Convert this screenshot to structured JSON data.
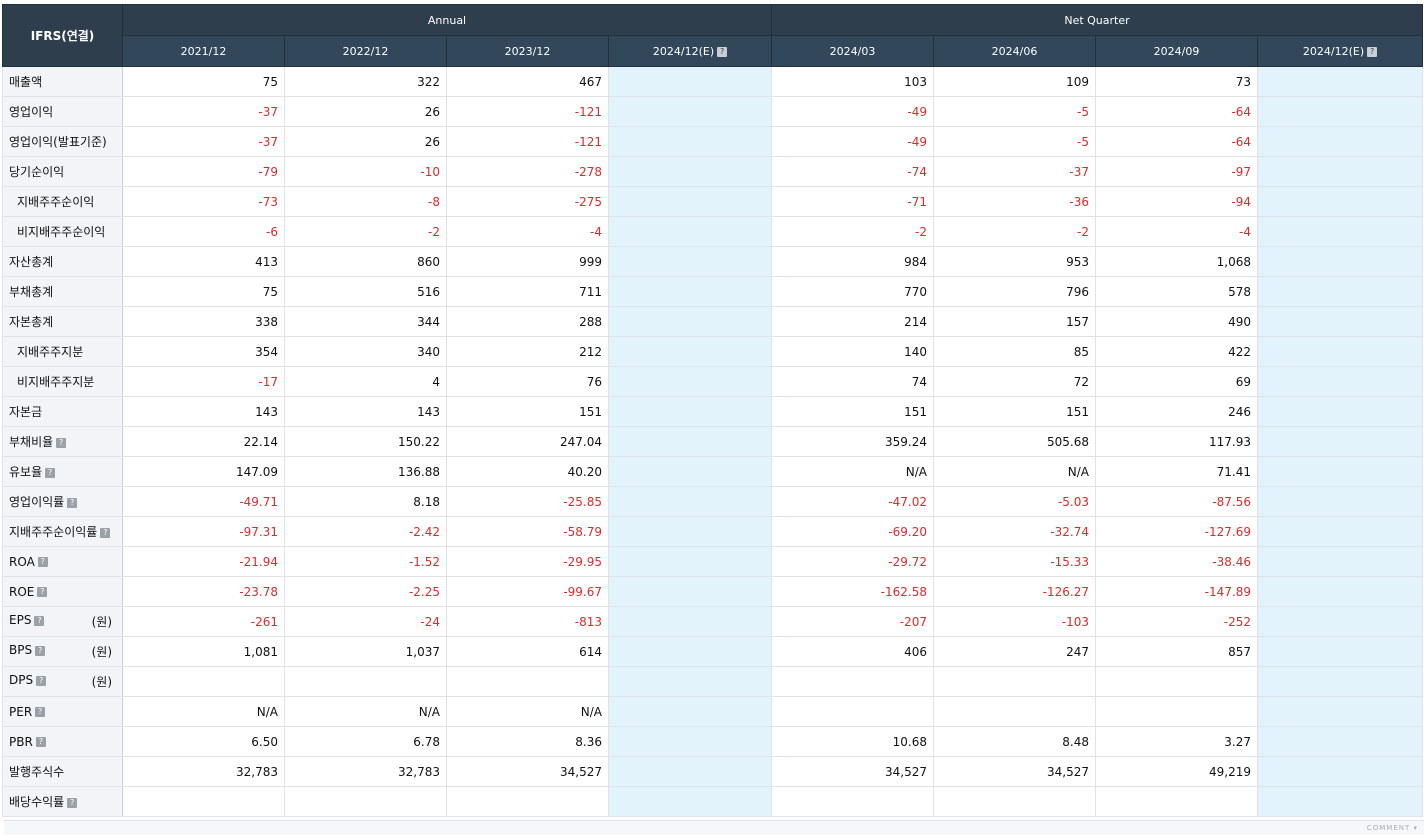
{
  "header": {
    "corner": "IFRS(연결)",
    "annual_label": "Annual",
    "quarter_label": "Net Quarter",
    "periods": [
      "2021/12",
      "2022/12",
      "2023/12",
      "2024/12(E)",
      "2024/03",
      "2024/06",
      "2024/09",
      "2024/12(E)"
    ],
    "help_glyph": "?"
  },
  "rows": [
    {
      "label": "매출액",
      "indent": false,
      "help": false,
      "unit": "",
      "values": [
        "75",
        "322",
        "467",
        "",
        "103",
        "109",
        "73",
        ""
      ]
    },
    {
      "label": "영업이익",
      "indent": false,
      "help": false,
      "unit": "",
      "values": [
        "-37",
        "26",
        "-121",
        "",
        "-49",
        "-5",
        "-64",
        ""
      ]
    },
    {
      "label": "영업이익(발표기준)",
      "indent": false,
      "help": false,
      "unit": "",
      "values": [
        "-37",
        "26",
        "-121",
        "",
        "-49",
        "-5",
        "-64",
        ""
      ]
    },
    {
      "label": "당기순이익",
      "indent": false,
      "help": false,
      "unit": "",
      "values": [
        "-79",
        "-10",
        "-278",
        "",
        "-74",
        "-37",
        "-97",
        ""
      ]
    },
    {
      "label": "지배주주순이익",
      "indent": true,
      "help": false,
      "unit": "",
      "values": [
        "-73",
        "-8",
        "-275",
        "",
        "-71",
        "-36",
        "-94",
        ""
      ]
    },
    {
      "label": "비지배주주순이익",
      "indent": true,
      "help": false,
      "unit": "",
      "values": [
        "-6",
        "-2",
        "-4",
        "",
        "-2",
        "-2",
        "-4",
        ""
      ]
    },
    {
      "label": "자산총계",
      "indent": false,
      "help": false,
      "unit": "",
      "values": [
        "413",
        "860",
        "999",
        "",
        "984",
        "953",
        "1,068",
        ""
      ]
    },
    {
      "label": "부채총계",
      "indent": false,
      "help": false,
      "unit": "",
      "values": [
        "75",
        "516",
        "711",
        "",
        "770",
        "796",
        "578",
        ""
      ]
    },
    {
      "label": "자본총계",
      "indent": false,
      "help": false,
      "unit": "",
      "values": [
        "338",
        "344",
        "288",
        "",
        "214",
        "157",
        "490",
        ""
      ]
    },
    {
      "label": "지배주주지분",
      "indent": true,
      "help": false,
      "unit": "",
      "values": [
        "354",
        "340",
        "212",
        "",
        "140",
        "85",
        "422",
        ""
      ]
    },
    {
      "label": "비지배주주지분",
      "indent": true,
      "help": false,
      "unit": "",
      "values": [
        "-17",
        "4",
        "76",
        "",
        "74",
        "72",
        "69",
        ""
      ]
    },
    {
      "label": "자본금",
      "indent": false,
      "help": false,
      "unit": "",
      "values": [
        "143",
        "143",
        "151",
        "",
        "151",
        "151",
        "246",
        ""
      ]
    },
    {
      "label": "부채비율",
      "indent": false,
      "help": true,
      "unit": "",
      "values": [
        "22.14",
        "150.22",
        "247.04",
        "",
        "359.24",
        "505.68",
        "117.93",
        ""
      ]
    },
    {
      "label": "유보율",
      "indent": false,
      "help": true,
      "unit": "",
      "values": [
        "147.09",
        "136.88",
        "40.20",
        "",
        "N/A",
        "N/A",
        "71.41",
        ""
      ]
    },
    {
      "label": "영업이익률",
      "indent": false,
      "help": true,
      "unit": "",
      "values": [
        "-49.71",
        "8.18",
        "-25.85",
        "",
        "-47.02",
        "-5.03",
        "-87.56",
        ""
      ]
    },
    {
      "label": "지배주주순이익률",
      "indent": false,
      "help": true,
      "unit": "",
      "values": [
        "-97.31",
        "-2.42",
        "-58.79",
        "",
        "-69.20",
        "-32.74",
        "-127.69",
        ""
      ]
    },
    {
      "label": "ROA",
      "indent": false,
      "help": true,
      "unit": "",
      "values": [
        "-21.94",
        "-1.52",
        "-29.95",
        "",
        "-29.72",
        "-15.33",
        "-38.46",
        ""
      ]
    },
    {
      "label": "ROE",
      "indent": false,
      "help": true,
      "unit": "",
      "values": [
        "-23.78",
        "-2.25",
        "-99.67",
        "",
        "-162.58",
        "-126.27",
        "-147.89",
        ""
      ]
    },
    {
      "label": "EPS",
      "indent": false,
      "help": true,
      "unit": "(원)",
      "values": [
        "-261",
        "-24",
        "-813",
        "",
        "-207",
        "-103",
        "-252",
        ""
      ]
    },
    {
      "label": "BPS",
      "indent": false,
      "help": true,
      "unit": "(원)",
      "values": [
        "1,081",
        "1,037",
        "614",
        "",
        "406",
        "247",
        "857",
        ""
      ]
    },
    {
      "label": "DPS",
      "indent": false,
      "help": true,
      "unit": "(원)",
      "values": [
        "",
        "",
        "",
        "",
        "",
        "",
        "",
        ""
      ]
    },
    {
      "label": "PER",
      "indent": false,
      "help": true,
      "unit": "",
      "values": [
        "N/A",
        "N/A",
        "N/A",
        "",
        "",
        "",
        "",
        ""
      ]
    },
    {
      "label": "PBR",
      "indent": false,
      "help": true,
      "unit": "",
      "values": [
        "6.50",
        "6.78",
        "8.36",
        "",
        "10.68",
        "8.48",
        "3.27",
        ""
      ]
    },
    {
      "label": "발행주식수",
      "indent": false,
      "help": false,
      "unit": "",
      "values": [
        "32,783",
        "32,783",
        "34,527",
        "",
        "34,527",
        "34,527",
        "49,219",
        ""
      ]
    },
    {
      "label": "배당수익률",
      "indent": false,
      "help": true,
      "unit": "",
      "values": [
        "",
        "",
        "",
        "",
        "",
        "",
        "",
        ""
      ]
    }
  ],
  "footer": {
    "comment_label": "COMMENT ▾"
  },
  "colors": {
    "header_bg": "#2f3e4d",
    "estimate_bg": "#e3f3fb",
    "negative": "#d92b2b",
    "label_bg": "#f2f4f7"
  }
}
